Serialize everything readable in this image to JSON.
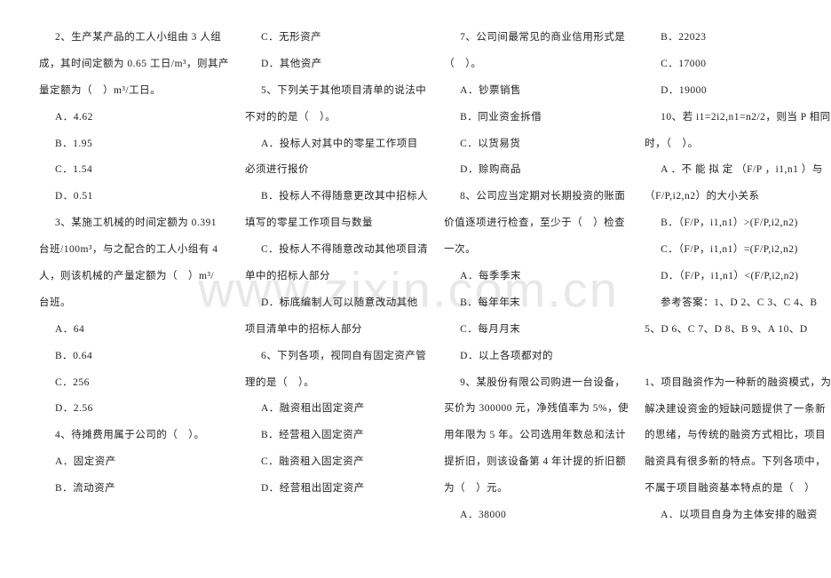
{
  "watermark": "www.zixin.com.cn",
  "col1": {
    "q2_l1": "2、生产某产品的工人小组由 3 人组",
    "q2_l2": "成，其时间定额为 0.65 工日/m³，则其产",
    "q2_l3": "量定额为（　）m³/工日。",
    "q2_a": "A．4.62",
    "q2_b": "B．1.95",
    "q2_c": "C．1.54",
    "q2_d": "D．0.51",
    "q3_l1": "3、某施工机械的时间定额为 0.391",
    "q3_l2": "台班/100m³，与之配合的工人小组有 4",
    "q3_l3": "人，则该机械的产量定额为（　）m³/",
    "q3_l4": "台班。",
    "q3_a": "A．64",
    "q3_b": "B．0.64",
    "q3_c": "C．256",
    "q3_d": "D．2.56",
    "q4_l1": "4、待摊费用属于公司的（　）。",
    "q4_a": "A．固定资产",
    "q4_b": "B．流动资产"
  },
  "col2": {
    "q4_c": "C．无形资产",
    "q4_d": "D．其他资产",
    "q5_l1": "5、下列关于其他项目清单的说法中",
    "q5_l2": "不对的的是（　）。",
    "q5_a_l1": "A．投标人对其中的零星工作项目",
    "q5_a_l2": "必须进行报价",
    "q5_b_l1": "B．投标人不得随意更改其中招标人",
    "q5_b_l2": "填写的零星工作项目与数量",
    "q5_c_l1": "C．投标人不得随意改动其他项目清",
    "q5_c_l2": "单中的招标人部分",
    "q5_d_l1": "D．标底编制人可以随意改动其他",
    "q5_d_l2": "项目清单中的招标人部分",
    "q6_l1": "6、下列各项，视同自有固定资产管",
    "q6_l2": "理的是（　）。",
    "q6_a": "A．融资租出固定资产",
    "q6_b": "B．经营租入固定资产",
    "q6_c": "C．融资租入固定资产",
    "q6_d": "D．经营租出固定资产"
  },
  "col3": {
    "q7_l1": "7、公司间最常见的商业信用形式是",
    "q7_l2": "（　）。",
    "q7_a": "A．钞票销售",
    "q7_b": "B．同业资金拆借",
    "q7_c": "C．以货易货",
    "q7_d": "D．赊购商品",
    "q8_l1": "8、公司应当定期对长期投资的账面",
    "q8_l2": "价值逐项进行检查，至少于（　）检查",
    "q8_l3": "一次。",
    "q8_a": "A．每季季末",
    "q8_b": "B．每年年末",
    "q8_c": "C．每月月末",
    "q8_d": "D．以上各项都对的",
    "q9_l1": "9、某股份有限公司购进一台设备，",
    "q9_l2": "买价为 300000 元，净残值率为 5%，使",
    "q9_l3": "用年限为 5 年。公司选用年数总和法计",
    "q9_l4": "提折旧，则该设备第 4 年计提的折旧额",
    "q9_l5": "为（　）元。",
    "q9_a": "A．38000"
  },
  "col4": {
    "q9_b": "B．22023",
    "q9_c": "C．17000",
    "q9_d": "D．19000",
    "q10_l1": "10、若 i1=2i2,n1=n2/2，则当 P 相同",
    "q10_l2": "时，（　）。",
    "q10_a_l1": "A ．不 能 拟 定 （F/P ，i1,n1 ）与",
    "q10_a_l2": "（F/P,i2,n2）的大小关系",
    "q10_b": "B．（F/P，i1,n1）>(F/P,i2,n2)",
    "q10_c": "C．（F/P，i1,n1）=(F/P,i2,n2)",
    "q10_d": "D．（F/P，i1,n1）<(F/P,i2,n2)",
    "ans_l1": "参考答案：1、D 2、C 3、C 4、B",
    "ans_l2": "5、D 6、C 7、D 8、B 9、A 10、D",
    "n1_l1": "1、项目融资作为一种新的融资模式，为",
    "n1_l2": "解决建设资金的短缺问题提供了一条新",
    "n1_l3": "的思绪，与传统的融资方式相比，项目",
    "n1_l4": "融资具有很多新的特点。下列各项中，",
    "n1_l5": "不属于项目融资基本特点的是（　）",
    "n1_a": "A．以项目自身为主体安排的融资"
  }
}
